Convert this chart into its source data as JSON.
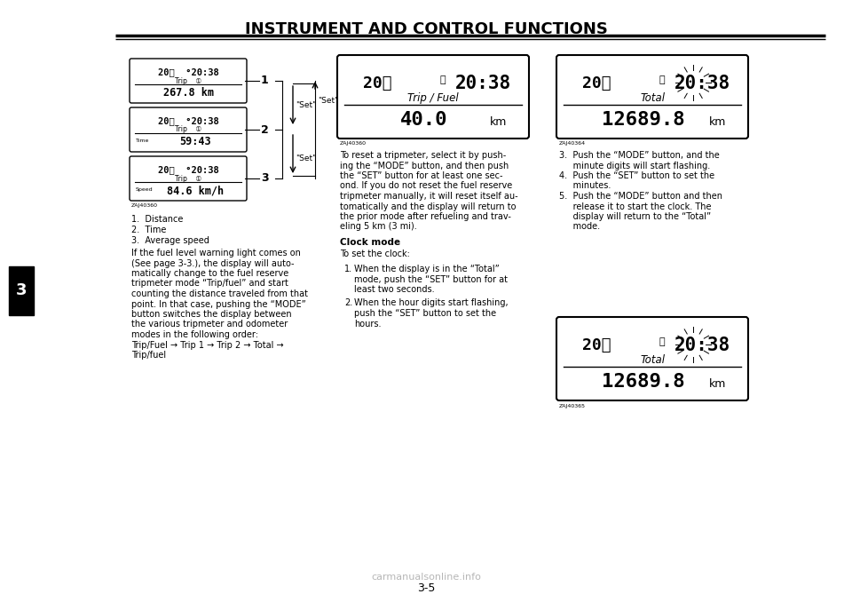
{
  "title": "INSTRUMENT AND CONTROL FUNCTIONS",
  "page_number": "3-5",
  "chapter_number": "3",
  "background_color": "#ffffff",
  "text_color": "#000000",
  "watermark": "carmanualsonline.info",
  "left_displays": [
    {
      "top_text": "20℃  °20:38",
      "sub_text": "Trip    ①",
      "bot_label": "",
      "bot_text": "267.8 km",
      "label": "1"
    },
    {
      "top_text": "20℃  °20:38",
      "sub_text": "Trip    ①",
      "bot_label": "Time",
      "bot_text": "59:43",
      "label": "2"
    },
    {
      "top_text": "20℃  °20:38",
      "sub_text": "Trip    ①",
      "bot_label": "Speed",
      "bot_text": "84.6 km/h",
      "label": "3"
    }
  ],
  "center_display": {
    "temp": "20℃",
    "clock_icon": "⌛",
    "time": "20:38",
    "sub": "Trip / Fuel",
    "value": "40.0",
    "unit": "km",
    "label": "ZAJ40360"
  },
  "right_display_1": {
    "temp": "20℃",
    "clock_icon": "⌛",
    "time": "20:38",
    "sub": "Total",
    "value": "12689.8",
    "unit": "km",
    "label": "ZAJ40364"
  },
  "right_display_2": {
    "temp": "20℃",
    "clock_icon": "⌛",
    "time": "20:38",
    "sub": "Total",
    "value": "12689.8",
    "unit": "km",
    "label": "ZAJ40365"
  },
  "numbered_items": [
    "1.  Distance",
    "2.  Time",
    "3.  Average speed"
  ],
  "left_para_lines": [
    "If the fuel level warning light comes on",
    "(See page 3-3.), the display will auto-",
    "matically change to the fuel reserve",
    "tripmeter mode “Trip/fuel” and start",
    "counting the distance traveled from that",
    "point. In that case, pushing the “MODE”",
    "button switches the display between",
    "the various tripmeter and odometer",
    "modes in the following order:",
    "Trip/Fuel → Trip 1 → Trip 2 → Total →",
    "Trip/fuel"
  ],
  "center_para_lines": [
    "To reset a tripmeter, select it by push-",
    "ing the “MODE” button, and then push",
    "the “SET” button for at least one sec-",
    "ond. If you do not reset the fuel reserve",
    "tripmeter manually, it will reset itself au-",
    "tomatically and the display will return to",
    "the prior mode after refueling and trav-",
    "eling 5 km (3 mi)."
  ],
  "clock_title": "Clock mode",
  "clock_intro": "To set the clock:",
  "clock_steps": [
    [
      "When the display is in the “Total”",
      "mode, push the “SET” button for at",
      "least two seconds."
    ],
    [
      "When the hour digits start flashing,",
      "push the “SET” button to set the",
      "hours."
    ]
  ],
  "right_para_lines": [
    "3.  Push the “MODE” button, and the",
    "     minute digits will start flashing.",
    "4.  Push the “SET” button to set the",
    "     minutes.",
    "5.  Push the “MODE” button and then",
    "     release it to start the clock. The",
    "     display will return to the “Total”",
    "     mode."
  ]
}
